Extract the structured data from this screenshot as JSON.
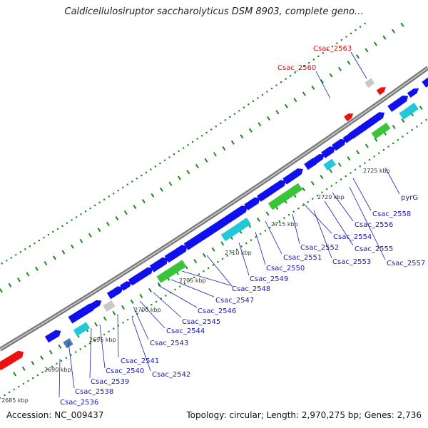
{
  "title": "Caldicellulosiruptor saccharolyticus DSM 8903, complete geno...",
  "footer": {
    "accession": "Accession: NC_009437",
    "summary": "Topology: circular; Length: 2,970,275 bp; Genes: 2,736"
  },
  "colors": {
    "blue_cds": "#1010ee",
    "cyan_cds": "#22c8d8",
    "green_cds": "#3ac43a",
    "grey_cds": "#c8c8c8",
    "red_cds": "#ee1010",
    "steel_cds": "#4a7ab0",
    "magenta_cds": "#ee2ab0",
    "olive_cds": "#6a8a10",
    "backbone": "#7a7a7a",
    "tick_green": "#1a8a1a",
    "label_blue": "#1a1ab4",
    "label_red": "#e01010"
  },
  "kbp_ticks": [
    "2685 kbp",
    "2690 kbp",
    "2695 kbp",
    "2700 kbp",
    "2705 kbp",
    "2710 kbp",
    "2715 kbp",
    "2720 kbp",
    "2725 kbp"
  ],
  "gene_labels": [
    {
      "name": "Csac_2536",
      "color": "blue"
    },
    {
      "name": "Csac_2538",
      "color": "blue"
    },
    {
      "name": "Csac_2539",
      "color": "blue"
    },
    {
      "name": "Csac_2540",
      "color": "blue"
    },
    {
      "name": "Csac_2541",
      "color": "blue"
    },
    {
      "name": "Csac_2542",
      "color": "blue"
    },
    {
      "name": "Csac_2543",
      "color": "blue"
    },
    {
      "name": "Csac_2544",
      "color": "blue"
    },
    {
      "name": "Csac_2545",
      "color": "blue"
    },
    {
      "name": "Csac_2546",
      "color": "blue"
    },
    {
      "name": "Csac_2547",
      "color": "blue"
    },
    {
      "name": "Csac_2548",
      "color": "blue"
    },
    {
      "name": "Csac_2549",
      "color": "blue"
    },
    {
      "name": "Csac_2550",
      "color": "blue"
    },
    {
      "name": "Csac_2551",
      "color": "blue"
    },
    {
      "name": "Csac_2552",
      "color": "blue"
    },
    {
      "name": "Csac_2553",
      "color": "blue"
    },
    {
      "name": "Csac_2554",
      "color": "blue"
    },
    {
      "name": "Csac_2555",
      "color": "blue"
    },
    {
      "name": "Csac_2556",
      "color": "blue"
    },
    {
      "name": "Csac_2557",
      "color": "blue"
    },
    {
      "name": "Csac_2558",
      "color": "blue"
    },
    {
      "name": "pyrG",
      "color": "blue"
    },
    {
      "name": "Csac_2560",
      "color": "red"
    },
    {
      "name": "Csac_2563",
      "color": "red"
    }
  ]
}
